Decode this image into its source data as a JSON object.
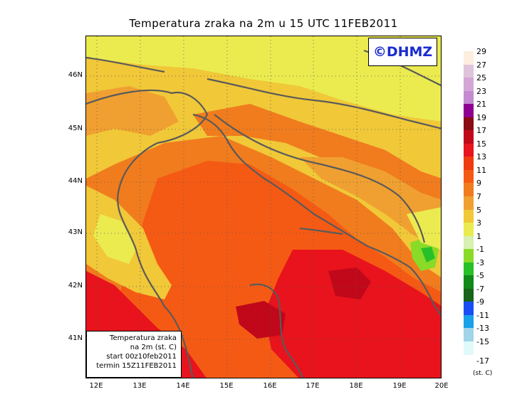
{
  "title": "Temperatura zraka na 2m u 15 UTC 11FEB2011",
  "logo_text": "©DHMZ",
  "info_box": {
    "line1": "Temperatura zraka",
    "line2": "na 2m (st. C)",
    "line3": "start 00z10feb2011",
    "line4": "termin 15Z11FEB2011"
  },
  "lat_labels": [
    "46N",
    "45N",
    "44N",
    "43N",
    "42N",
    "41N"
  ],
  "lon_labels": [
    "12E",
    "13E",
    "14E",
    "15E",
    "16E",
    "17E",
    "18E",
    "19E",
    "20E"
  ],
  "legend": {
    "unit": "(st. C)",
    "bottom_label": "-17",
    "items": [
      {
        "label": "29",
        "color": "#fdeee0"
      },
      {
        "label": "27",
        "color": "#e0c4dc"
      },
      {
        "label": "25",
        "color": "#d4a6d6"
      },
      {
        "label": "23",
        "color": "#c48ad0"
      },
      {
        "label": "21",
        "color": "#8e0090"
      },
      {
        "label": "19",
        "color": "#8a0b14"
      },
      {
        "label": "17",
        "color": "#c0081a"
      },
      {
        "label": "15",
        "color": "#e8131c"
      },
      {
        "label": "13",
        "color": "#f03a10"
      },
      {
        "label": "11",
        "color": "#f55a14"
      },
      {
        "label": "9",
        "color": "#f07c1e"
      },
      {
        "label": "7",
        "color": "#f0a030"
      },
      {
        "label": "5",
        "color": "#f0c838"
      },
      {
        "label": "3",
        "color": "#ebeb50"
      },
      {
        "label": "1",
        "color": "#d8f0b0"
      },
      {
        "label": "-1",
        "color": "#8ada28"
      },
      {
        "label": "-3",
        "color": "#28c028"
      },
      {
        "label": "-5",
        "color": "#108a18"
      },
      {
        "label": "-7",
        "color": "#186418"
      },
      {
        "label": "-9",
        "color": "#1a4ef5"
      },
      {
        "label": "-11",
        "color": "#18a0e8"
      },
      {
        "label": "-13",
        "color": "#a0d4e8"
      },
      {
        "label": "-15",
        "color": "#e0fafa"
      }
    ]
  }
}
